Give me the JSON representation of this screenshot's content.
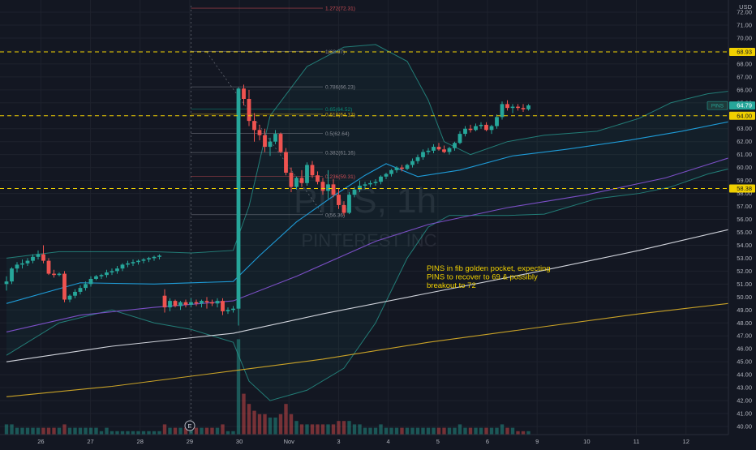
{
  "chart_data": {
    "type": "candlestick",
    "symbol": "PINS",
    "interval": "1h",
    "watermark_symbol": "PINS, 1h",
    "watermark_name": "PINTEREST INC",
    "currency": "USD",
    "y_ticks": [
      40,
      41,
      42,
      43,
      44,
      45,
      46,
      47,
      48,
      49,
      50,
      51,
      52,
      53,
      54,
      55,
      56,
      57,
      58,
      59,
      60,
      61,
      62,
      63,
      64,
      65,
      66,
      67,
      68,
      69,
      70,
      71,
      72
    ],
    "y_tick_labels": [
      "40.00",
      "41.00",
      "42.00",
      "43.00",
      "44.00",
      "45.00",
      "46.00",
      "47.00",
      "48.00",
      "49.00",
      "50.00",
      "51.00",
      "52.00",
      "53.00",
      "54.00",
      "55.00",
      "56.00",
      "57.00",
      "58.00",
      "59.00",
      "60.00",
      "61.00",
      "62.00",
      "63.00",
      "64.00",
      "65.00",
      "66.00",
      "67.00",
      "68.00",
      "69.00",
      "70.00",
      "71.00",
      "72.00"
    ],
    "ylim": [
      39.75,
      72.75
    ],
    "x_ticks": [
      {
        "label": "26",
        "bar": 1
      },
      {
        "label": "27",
        "bar": 15
      },
      {
        "label": "28",
        "bar": 29
      },
      {
        "label": "29",
        "bar": 43
      },
      {
        "label": "30",
        "bar": 57
      },
      {
        "label": "Nov",
        "bar": 71
      },
      {
        "label": "3",
        "bar": 85
      },
      {
        "label": "4",
        "bar": 99
      },
      {
        "label": "5",
        "bar": 113
      },
      {
        "label": "6",
        "bar": 127
      },
      {
        "label": "9",
        "bar": 141
      },
      {
        "label": "10",
        "bar": 155
      },
      {
        "label": "11",
        "bar": 169
      },
      {
        "label": "12",
        "bar": 183
      }
    ],
    "bar_range": [
      0,
      196
    ],
    "candles": [
      [
        51.0,
        51.6,
        50.5,
        51.2,
        3
      ],
      [
        51.2,
        52.3,
        51.0,
        52.2,
        3
      ],
      [
        52.2,
        52.7,
        51.9,
        52.5,
        2
      ],
      [
        52.5,
        52.9,
        52.2,
        52.6,
        2
      ],
      [
        52.6,
        53.0,
        52.4,
        52.8,
        2
      ],
      [
        52.8,
        53.3,
        52.6,
        53.1,
        2
      ],
      [
        53.1,
        53.6,
        52.9,
        53.3,
        2
      ],
      [
        53.3,
        54.0,
        52.6,
        52.8,
        2
      ],
      [
        52.8,
        53.0,
        51.7,
        51.8,
        2
      ],
      [
        51.8,
        52.1,
        51.5,
        51.7,
        2
      ],
      [
        51.7,
        51.9,
        51.6,
        51.8,
        2
      ],
      [
        51.8,
        52.0,
        49.6,
        49.8,
        3
      ],
      [
        49.8,
        50.2,
        49.6,
        50.1,
        2
      ],
      [
        50.1,
        50.6,
        49.9,
        50.4,
        2
      ],
      [
        50.4,
        50.9,
        50.2,
        50.7,
        2
      ],
      [
        50.7,
        51.2,
        50.5,
        51.0,
        2
      ],
      [
        51.0,
        51.6,
        50.8,
        51.4,
        2
      ],
      [
        51.4,
        51.7,
        51.3,
        51.6,
        2
      ],
      [
        51.6,
        51.8,
        51.4,
        51.7,
        1
      ],
      [
        51.7,
        52.1,
        51.5,
        51.9,
        2
      ],
      [
        51.9,
        52.2,
        51.7,
        52.0,
        1
      ],
      [
        52.0,
        52.4,
        51.8,
        52.2,
        1
      ],
      [
        52.2,
        52.6,
        52.0,
        52.5,
        1
      ],
      [
        52.5,
        52.8,
        52.3,
        52.6,
        1
      ],
      [
        52.6,
        52.9,
        52.4,
        52.7,
        1
      ],
      [
        52.7,
        52.9,
        52.5,
        52.8,
        1
      ],
      [
        52.8,
        53.0,
        52.6,
        52.9,
        1
      ],
      [
        52.9,
        53.1,
        52.7,
        53.0,
        1
      ],
      [
        53.0,
        53.2,
        52.8,
        53.1,
        1
      ],
      [
        53.1,
        53.3,
        52.9,
        53.2,
        1
      ],
      [
        50.1,
        50.6,
        48.8,
        49.2,
        3
      ],
      [
        49.2,
        49.9,
        48.9,
        49.7,
        2
      ],
      [
        49.7,
        49.8,
        49.2,
        49.3,
        2
      ],
      [
        49.3,
        49.7,
        49.0,
        49.6,
        2
      ],
      [
        49.6,
        49.8,
        49.2,
        49.4,
        2
      ],
      [
        49.4,
        49.9,
        49.2,
        49.6,
        2
      ],
      [
        49.6,
        49.8,
        49.3,
        49.5,
        2
      ],
      [
        49.5,
        49.8,
        49.2,
        49.7,
        2
      ],
      [
        49.7,
        50.0,
        49.1,
        49.6,
        2
      ],
      [
        49.6,
        49.8,
        49.3,
        49.5,
        2
      ],
      [
        49.5,
        49.9,
        49.2,
        49.7,
        2
      ],
      [
        49.7,
        49.9,
        48.6,
        48.9,
        3
      ],
      [
        48.9,
        49.2,
        48.7,
        49.0,
        1
      ],
      [
        49.0,
        49.3,
        48.8,
        49.1,
        1
      ],
      [
        49.1,
        66.2,
        47.8,
        66.1,
        28
      ],
      [
        66.1,
        66.4,
        64.8,
        65.3,
        12
      ],
      [
        65.3,
        66.0,
        63.2,
        63.6,
        9
      ],
      [
        63.6,
        64.2,
        62.0,
        62.9,
        7
      ],
      [
        62.9,
        63.3,
        62.1,
        62.5,
        6
      ],
      [
        62.5,
        63.0,
        61.2,
        61.6,
        6
      ],
      [
        61.6,
        62.3,
        60.9,
        62.0,
        5
      ],
      [
        62.0,
        62.9,
        61.8,
        62.6,
        5
      ],
      [
        62.6,
        62.7,
        61.1,
        61.2,
        6
      ],
      [
        61.2,
        61.5,
        59.4,
        59.6,
        9
      ],
      [
        59.6,
        60.0,
        58.1,
        58.5,
        6
      ],
      [
        58.5,
        59.3,
        58.3,
        59.2,
        4
      ],
      [
        59.2,
        59.8,
        58.5,
        58.8,
        3
      ],
      [
        58.8,
        60.4,
        58.6,
        60.2,
        3
      ],
      [
        60.2,
        60.5,
        59.2,
        59.4,
        3
      ],
      [
        59.4,
        59.7,
        58.7,
        58.9,
        3
      ],
      [
        58.9,
        59.2,
        57.9,
        58.2,
        3
      ],
      [
        58.2,
        59.8,
        57.6,
        58.7,
        3
      ],
      [
        58.7,
        59.1,
        57.7,
        57.9,
        3
      ],
      [
        57.9,
        58.4,
        56.8,
        57.1,
        4
      ],
      [
        57.1,
        57.4,
        56.3,
        56.5,
        4
      ],
      [
        56.5,
        58.1,
        56.4,
        57.9,
        4
      ],
      [
        57.9,
        58.5,
        57.7,
        58.3,
        3
      ],
      [
        58.3,
        59.0,
        58.1,
        58.6,
        3
      ],
      [
        58.6,
        58.9,
        58.3,
        58.7,
        2
      ],
      [
        58.7,
        59.0,
        58.5,
        58.8,
        2
      ],
      [
        58.8,
        59.1,
        58.6,
        58.9,
        2
      ],
      [
        58.9,
        59.4,
        58.7,
        59.3,
        3
      ],
      [
        59.3,
        59.6,
        59.1,
        59.5,
        2
      ],
      [
        59.5,
        59.9,
        59.3,
        59.8,
        2
      ],
      [
        59.8,
        60.1,
        59.6,
        60.0,
        2
      ],
      [
        60.0,
        60.2,
        59.7,
        59.9,
        2
      ],
      [
        59.9,
        60.3,
        59.8,
        60.2,
        2
      ],
      [
        60.2,
        60.7,
        60.0,
        60.5,
        2
      ],
      [
        60.5,
        61.0,
        60.3,
        60.8,
        2
      ],
      [
        60.8,
        61.4,
        60.6,
        61.2,
        2
      ],
      [
        61.2,
        61.5,
        61.0,
        61.3,
        2
      ],
      [
        61.3,
        61.8,
        61.1,
        61.6,
        2
      ],
      [
        61.6,
        61.9,
        61.3,
        61.4,
        2
      ],
      [
        61.4,
        61.7,
        61.1,
        61.2,
        2
      ],
      [
        61.2,
        61.6,
        61.0,
        61.5,
        2
      ],
      [
        61.5,
        62.0,
        61.3,
        61.9,
        2
      ],
      [
        61.9,
        62.8,
        61.8,
        62.6,
        3
      ],
      [
        62.6,
        63.2,
        62.4,
        63.0,
        2
      ],
      [
        63.0,
        63.3,
        62.7,
        62.9,
        2
      ],
      [
        62.9,
        63.4,
        62.8,
        63.2,
        2
      ],
      [
        63.2,
        63.5,
        63.0,
        63.3,
        2
      ],
      [
        63.3,
        63.5,
        62.8,
        62.9,
        2
      ],
      [
        62.9,
        63.3,
        62.6,
        63.2,
        2
      ],
      [
        63.2,
        64.1,
        63.0,
        63.9,
        2
      ],
      [
        63.9,
        65.1,
        63.7,
        64.9,
        3
      ],
      [
        64.9,
        65.2,
        64.4,
        64.6,
        2
      ],
      [
        64.6,
        64.9,
        64.2,
        64.7,
        2
      ],
      [
        64.7,
        64.9,
        64.4,
        64.6,
        1
      ],
      [
        64.6,
        64.9,
        64.3,
        64.5,
        1
      ],
      [
        64.5,
        64.9,
        64.4,
        64.8,
        1
      ]
    ],
    "candle_bar_positions": [
      0,
      1,
      2,
      3,
      4,
      5,
      6,
      7,
      8,
      9,
      10,
      11,
      12,
      13,
      14,
      15,
      16,
      17,
      18,
      19,
      20,
      21,
      22,
      23,
      24,
      25,
      26,
      27,
      28,
      29,
      30,
      31,
      32,
      33,
      34,
      35,
      36,
      37,
      38,
      39,
      40,
      41,
      42,
      43,
      44,
      45,
      46,
      47,
      48,
      49,
      50,
      51,
      52,
      53,
      54,
      55,
      56,
      57,
      58,
      59,
      60,
      61,
      62,
      63,
      64,
      65,
      66,
      67,
      68,
      69,
      70,
      71,
      72,
      73,
      74,
      75,
      76,
      77,
      78,
      79,
      80,
      81,
      82,
      83,
      84,
      85,
      86,
      87,
      88,
      89,
      90,
      91,
      92,
      93,
      94,
      95,
      96,
      97,
      98,
      99
    ],
    "indicators": [
      {
        "kind": "ma_fast",
        "color": "#1e9bd7",
        "points": [
          [
            0,
            49.5
          ],
          [
            14,
            51.1
          ],
          [
            28,
            51.0
          ],
          [
            43,
            51.2
          ],
          [
            48,
            53.2
          ],
          [
            55,
            55.8
          ],
          [
            62,
            57.8
          ],
          [
            68,
            59.4
          ],
          [
            72,
            60.3
          ],
          [
            78,
            59.3
          ],
          [
            86,
            59.8
          ],
          [
            96,
            60.9
          ],
          [
            106,
            61.4
          ],
          [
            118,
            62.1
          ],
          [
            128,
            62.8
          ],
          [
            139,
            63.7
          ]
        ]
      },
      {
        "kind": "ma_slow",
        "color": "#7b4fc6",
        "points": [
          [
            0,
            47.3
          ],
          [
            14,
            48.6
          ],
          [
            28,
            49.2
          ],
          [
            43,
            49.7
          ],
          [
            55,
            51.6
          ],
          [
            70,
            54.3
          ],
          [
            80,
            55.6
          ],
          [
            95,
            56.9
          ],
          [
            110,
            57.9
          ],
          [
            125,
            59.2
          ],
          [
            139,
            61.0
          ]
        ]
      },
      {
        "kind": "ma_200",
        "color": "#d1d4dc",
        "points": [
          [
            0,
            45.0
          ],
          [
            20,
            46.2
          ],
          [
            43,
            47.2
          ],
          [
            60,
            48.7
          ],
          [
            80,
            50.3
          ],
          [
            100,
            51.9
          ],
          [
            120,
            53.6
          ],
          [
            139,
            55.4
          ]
        ]
      },
      {
        "kind": "ma_500",
        "color": "#c9a227",
        "points": [
          [
            0,
            42.3
          ],
          [
            20,
            43.1
          ],
          [
            43,
            44.3
          ],
          [
            60,
            45.2
          ],
          [
            80,
            46.5
          ],
          [
            100,
            47.6
          ],
          [
            120,
            48.7
          ],
          [
            139,
            49.6
          ]
        ]
      }
    ],
    "bollinger": {
      "upper": [
        [
          0,
          53.0
        ],
        [
          10,
          53.5
        ],
        [
          20,
          53.5
        ],
        [
          28,
          53.5
        ],
        [
          35,
          53.4
        ],
        [
          43,
          53.6
        ],
        [
          46,
          57.0
        ],
        [
          50,
          64.0
        ],
        [
          57,
          67.8
        ],
        [
          64,
          69.3
        ],
        [
          70,
          69.5
        ],
        [
          76,
          68.2
        ],
        [
          80,
          65.2
        ],
        [
          83,
          62.0
        ],
        [
          88,
          61.0
        ],
        [
          95,
          62.0
        ],
        [
          102,
          62.5
        ],
        [
          112,
          62.8
        ],
        [
          120,
          63.8
        ],
        [
          126,
          65.0
        ],
        [
          133,
          65.7
        ],
        [
          139,
          66.0
        ]
      ],
      "lower": [
        [
          0,
          45.5
        ],
        [
          10,
          48.0
        ],
        [
          20,
          49.0
        ],
        [
          28,
          48.0
        ],
        [
          35,
          47.5
        ],
        [
          43,
          46.5
        ],
        [
          46,
          43.5
        ],
        [
          50,
          42.0
        ],
        [
          57,
          42.8
        ],
        [
          64,
          44.5
        ],
        [
          70,
          48.0
        ],
        [
          76,
          53.0
        ],
        [
          80,
          55.4
        ],
        [
          84,
          56.3
        ],
        [
          95,
          56.3
        ],
        [
          102,
          56.4
        ],
        [
          112,
          57.6
        ],
        [
          120,
          58.0
        ],
        [
          126,
          58.5
        ],
        [
          133,
          59.5
        ],
        [
          139,
          60.1
        ]
      ],
      "color": "#2aa69a"
    },
    "horizontal_lines": [
      {
        "price": 68.93,
        "label": "68.93"
      },
      {
        "price": 64.0,
        "label": "64.00"
      },
      {
        "price": 58.38,
        "label": "58.38"
      }
    ],
    "current_price": {
      "symbol": "PINS",
      "price": 64.79,
      "label": "64.79"
    },
    "fib_levels": [
      {
        "label": "1.272(72.31)",
        "price": 72.31,
        "color": "#e0525a"
      },
      {
        "label": "1(68.97)",
        "price": 68.97,
        "color": "#9598a1"
      },
      {
        "label": "0.786(66.23)",
        "price": 66.23,
        "color": "#9598a1"
      },
      {
        "label": "0.65(64.52)",
        "price": 64.52,
        "color": "#089981"
      },
      {
        "label": "0.618(64.12)",
        "price": 64.12,
        "color": "#f0b90b"
      },
      {
        "label": "0.5(62.64)",
        "price": 62.64,
        "color": "#9598a1"
      },
      {
        "label": "0.382(61.16)",
        "price": 61.16,
        "color": "#9598a1"
      },
      {
        "label": "0.236(59.31)",
        "price": 59.31,
        "color": "#e0525a"
      },
      {
        "label": "0(56.36)",
        "price": 56.36,
        "color": "#9598a1"
      }
    ],
    "annotation": [
      "PINS in fib golden pocket, expecting",
      "PINS to recover to 69 & possibly",
      "breakout to 72"
    ],
    "earnings_marker": "E",
    "colors": {
      "up": "#26a69a",
      "down": "#ef5350",
      "background": "#131722",
      "grid": "#1e222d",
      "axis_text": "#b2b5be",
      "dashed": "#f0d000",
      "annotation": "#f0d000"
    }
  }
}
